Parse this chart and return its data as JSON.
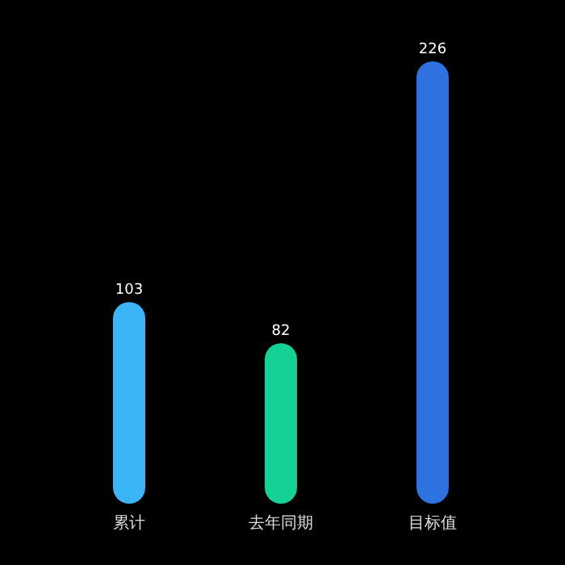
{
  "chart_data": {
    "type": "bar",
    "categories": [
      "累计",
      "去年同期",
      "目标值"
    ],
    "values": [
      103,
      82,
      226
    ],
    "colors": [
      "#3bb4f8",
      "#14d295",
      "#2d72e0"
    ],
    "data_labels": true
  }
}
